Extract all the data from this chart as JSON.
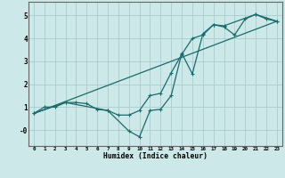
{
  "xlabel": "Humidex (Indice chaleur)",
  "background_color": "#cce8e8",
  "grid_color": "#aacccc",
  "line_color": "#1a6b6b",
  "xlim": [
    -0.5,
    23.5
  ],
  "ylim": [
    -0.7,
    5.6
  ],
  "xticks": [
    0,
    1,
    2,
    3,
    4,
    5,
    6,
    7,
    8,
    9,
    10,
    11,
    12,
    13,
    14,
    15,
    16,
    17,
    18,
    19,
    20,
    21,
    22,
    23
  ],
  "ytick_vals": [
    0,
    1,
    2,
    3,
    4,
    5
  ],
  "ytick_labels": [
    "-0",
    "1",
    "2",
    "3",
    "4",
    "5"
  ],
  "line1_x": [
    0,
    1,
    2,
    3,
    4,
    5,
    6,
    7,
    8,
    9,
    10,
    11,
    12,
    13,
    14,
    15,
    16,
    17,
    18,
    19,
    20,
    21,
    22,
    23
  ],
  "line1_y": [
    0.72,
    1.0,
    1.0,
    1.2,
    1.2,
    1.15,
    0.9,
    0.85,
    0.65,
    0.65,
    0.85,
    1.5,
    1.6,
    2.5,
    3.3,
    4.0,
    4.15,
    4.6,
    4.5,
    4.15,
    4.85,
    5.05,
    4.85,
    4.75
  ],
  "line2_x": [
    0,
    3,
    7,
    9,
    10,
    11,
    12,
    13,
    14,
    15,
    16,
    17,
    18,
    21,
    23
  ],
  "line2_y": [
    0.72,
    1.2,
    0.85,
    -0.05,
    -0.3,
    0.85,
    0.9,
    1.5,
    3.35,
    2.45,
    4.2,
    4.6,
    4.55,
    5.05,
    4.75
  ],
  "line3_x": [
    0,
    23
  ],
  "line3_y": [
    0.72,
    4.75
  ]
}
